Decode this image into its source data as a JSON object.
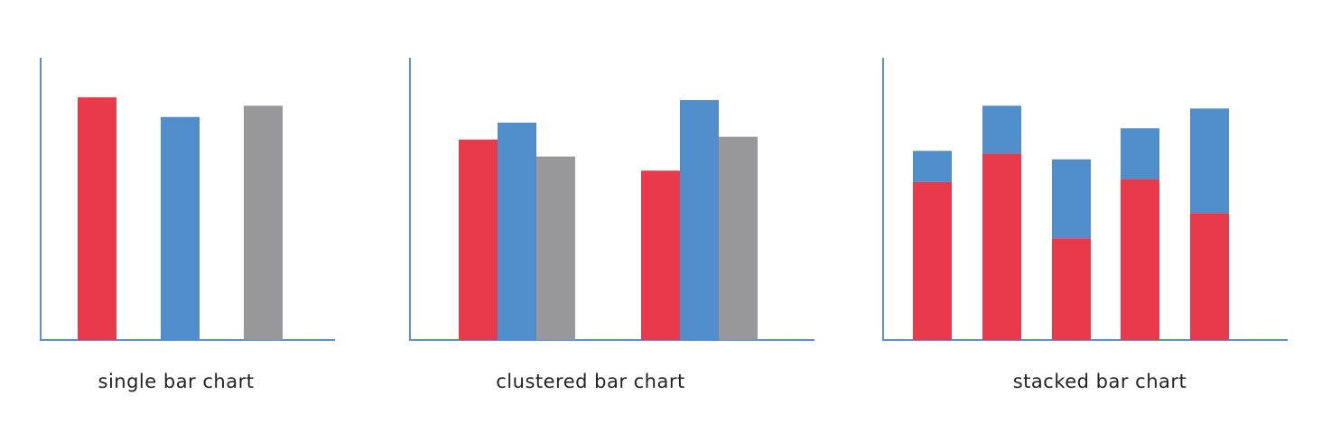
{
  "chart_data": [
    {
      "type": "bar",
      "title": "single bar chart",
      "categories": [
        null,
        null,
        null
      ],
      "values": [
        86,
        79,
        83
      ],
      "colors": [
        "#e83a4a",
        "#508ecb",
        "#98989a"
      ],
      "ylim": [
        0,
        100
      ]
    },
    {
      "type": "grouped",
      "title": "clustered bar chart",
      "categories": [
        null,
        null
      ],
      "series": [
        {
          "color": "#e83a4a",
          "values": [
            71,
            60
          ]
        },
        {
          "color": "#508ecb",
          "values": [
            77,
            85
          ]
        },
        {
          "color": "#98989a",
          "values": [
            65,
            72
          ]
        }
      ],
      "ylim": [
        0,
        100
      ]
    },
    {
      "type": "stacked",
      "title": "stacked bar chart",
      "categories": [
        null,
        null,
        null,
        null,
        null
      ],
      "series": [
        {
          "color": "#e83a4a",
          "values": [
            56,
            66,
            36,
            57,
            45
          ]
        },
        {
          "color": "#508ecb",
          "values": [
            11,
            17,
            28,
            18,
            37
          ]
        }
      ],
      "ylim": [
        0,
        100
      ]
    }
  ]
}
